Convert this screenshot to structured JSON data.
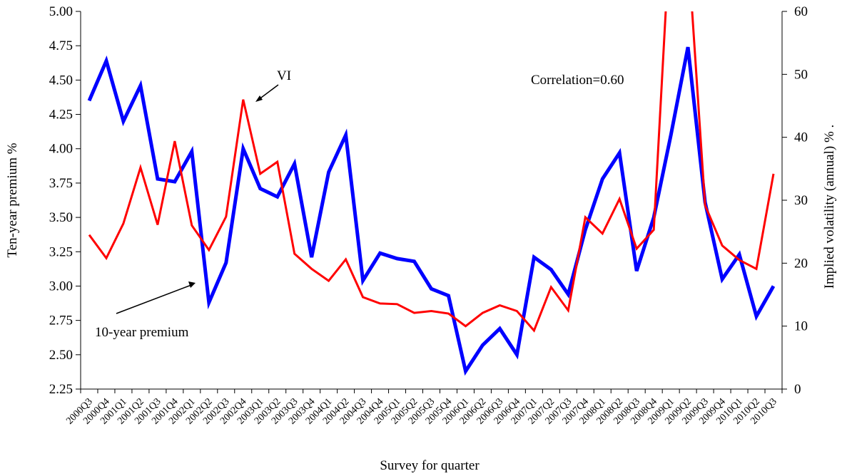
{
  "chart_data": {
    "type": "line",
    "title": "",
    "xlabel": "Survey for quarter",
    "ylabel_left": "Ten-year premium %",
    "ylabel_right": "Implied volatility (annual)  %  .",
    "ylim_left": [
      2.25,
      5.0
    ],
    "ylim_right": [
      0,
      60
    ],
    "yticks_left": [
      "2.25",
      "2.50",
      "2.75",
      "3.00",
      "3.25",
      "3.50",
      "3.75",
      "4.00",
      "4.25",
      "4.50",
      "4.75",
      "5.00"
    ],
    "yticks_right": [
      "0",
      "10",
      "20",
      "30",
      "40",
      "50",
      "60"
    ],
    "grid": false,
    "legend": "none",
    "categories": [
      "2000Q3",
      "2000Q4",
      "2001Q1",
      "2001Q2",
      "2001Q3",
      "2001Q4",
      "2002Q1",
      "2002Q2",
      "2002Q3",
      "2002Q4",
      "2003Q1",
      "2003Q2",
      "2003Q3",
      "2003Q4",
      "2004Q1",
      "2004Q2",
      "2004Q3",
      "2004Q4",
      "2005Q1",
      "2005Q2",
      "2005Q3",
      "2005Q4",
      "2006Q1",
      "2006Q2",
      "2006Q3",
      "2006Q4",
      "2007Q1",
      "2007Q2",
      "2007Q3",
      "2007Q4",
      "2008Q1",
      "2008Q2",
      "2008Q3",
      "2008Q4",
      "2009Q1",
      "2009Q2",
      "2009Q3",
      "2009Q4",
      "2010Q1",
      "2010Q2",
      "2010Q3"
    ],
    "series": [
      {
        "axis": "left",
        "color": "#0000ff",
        "values": [
          4.35,
          4.64,
          4.2,
          4.46,
          3.78,
          3.76,
          3.98,
          2.88,
          3.17,
          4.0,
          3.71,
          3.65,
          3.89,
          3.21,
          3.83,
          4.1,
          3.04,
          3.24,
          3.2,
          3.18,
          2.98,
          2.93,
          2.38,
          2.57,
          2.69,
          2.5,
          3.21,
          3.12,
          2.94,
          3.41,
          3.78,
          3.97,
          3.11,
          3.5,
          4.1,
          4.74,
          3.61,
          3.05,
          3.23,
          2.78,
          3.0
        ]
      },
      {
        "axis": "right",
        "color": "#ff0000",
        "values": [
          24.5,
          20.8,
          26.3,
          35.2,
          26.1,
          39.4,
          26.0,
          22.1,
          27.4,
          46.0,
          34.2,
          36.1,
          21.5,
          19.1,
          17.2,
          20.6,
          14.6,
          13.6,
          13.5,
          12.1,
          12.4,
          12.0,
          10.0,
          12.1,
          13.3,
          12.4,
          9.3,
          16.2,
          12.5,
          27.3,
          24.7,
          30.2,
          22.3,
          25.3,
          75.0,
          70.0,
          29.2,
          22.8,
          20.5,
          19.1,
          34.2
        ]
      }
    ],
    "annotations": [
      {
        "text": "VI",
        "target": "series-1"
      },
      {
        "text": "10-year premium",
        "target": "series-0"
      },
      {
        "text": "Correlation=0.60"
      }
    ]
  }
}
